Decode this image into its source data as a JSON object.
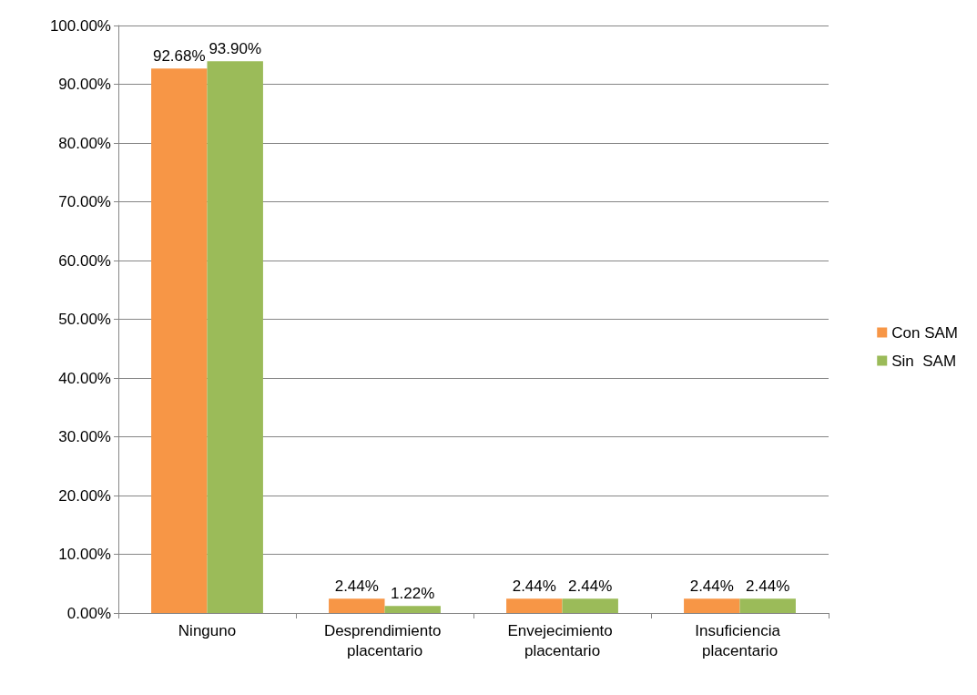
{
  "chart_data": {
    "type": "bar",
    "categories": [
      "Ninguno",
      "Desprendimiento placentario",
      "Envejecimiento placentario",
      "Insuficiencia placentario"
    ],
    "series": [
      {
        "name": "Con SAM",
        "color": "#f79646",
        "values": [
          92.68,
          2.44,
          2.44,
          2.44
        ],
        "value_labels": [
          "92.68%",
          "2.44%",
          "2.44%",
          "2.44%"
        ]
      },
      {
        "name": "Sin  SAM",
        "color": "#9bbb59",
        "values": [
          93.9,
          1.22,
          2.44,
          2.44
        ],
        "value_labels": [
          "93.90%",
          "1.22%",
          "2.44%",
          "2.44%"
        ]
      }
    ],
    "ylim": [
      0,
      100
    ],
    "yticks": [
      {
        "value": 0,
        "label": "0.00%"
      },
      {
        "value": 10,
        "label": "10.00%"
      },
      {
        "value": 20,
        "label": "20.00%"
      },
      {
        "value": 30,
        "label": "30.00%"
      },
      {
        "value": 40,
        "label": "40.00%"
      },
      {
        "value": 50,
        "label": "50.00%"
      },
      {
        "value": 60,
        "label": "60.00%"
      },
      {
        "value": 70,
        "label": "70.00%"
      },
      {
        "value": 80,
        "label": "80.00%"
      },
      {
        "value": 90,
        "label": "90.00%"
      },
      {
        "value": 100,
        "label": "100.00%"
      }
    ],
    "grid": "y",
    "legend": "right"
  }
}
